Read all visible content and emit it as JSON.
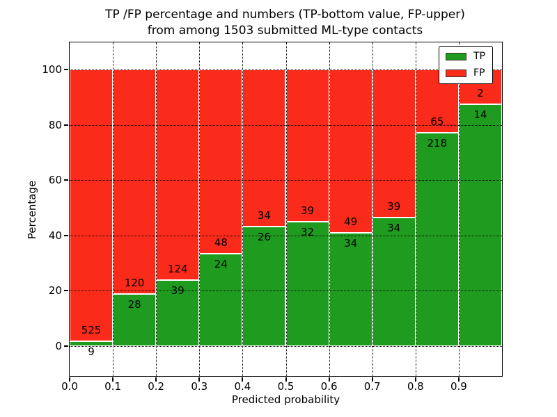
{
  "title": {
    "line1": "TP /FP percentage and numbers (TP-bottom value, FP-upper)",
    "line2": "from among 1503 submitted ML-type contacts"
  },
  "axes": {
    "xlabel": "Predicted probability",
    "ylabel": "Percentage",
    "yticks": [
      0,
      20,
      40,
      60,
      80,
      100
    ],
    "xtick_labels": [
      "0.0",
      "0.1",
      "0.2",
      "0.3",
      "0.4",
      "0.5",
      "0.6",
      "0.7",
      "0.8",
      "0.9"
    ]
  },
  "legend": {
    "items": [
      {
        "label": "TP",
        "color": "#1f9b1f"
      },
      {
        "label": "FP",
        "color": "#fa2b1a"
      }
    ]
  },
  "chart_data": {
    "type": "bar",
    "stacked": true,
    "normalized_to_percent": true,
    "title": "TP /FP percentage and numbers (TP-bottom value, FP-upper) from among 1503 submitted ML-type contacts",
    "xlabel": "Predicted probability",
    "ylabel": "Percentage",
    "total_contacts": 1503,
    "categories": [
      "0.0-0.1",
      "0.1-0.2",
      "0.2-0.3",
      "0.3-0.4",
      "0.4-0.5",
      "0.5-0.6",
      "0.6-0.7",
      "0.7-0.8",
      "0.8-0.9",
      "0.9-1.0"
    ],
    "bin_width": 0.1,
    "series": [
      {
        "name": "TP",
        "color": "#1f9b1f",
        "values": [
          9,
          28,
          39,
          24,
          26,
          32,
          34,
          34,
          218,
          14
        ]
      },
      {
        "name": "FP",
        "color": "#fa2b1a",
        "values": [
          525,
          120,
          124,
          48,
          34,
          39,
          49,
          39,
          65,
          2
        ]
      }
    ],
    "tp_percent_per_bin": [
      1.7,
      18.9,
      23.9,
      33.3,
      43.3,
      45.1,
      41.0,
      46.6,
      77.0,
      87.5
    ],
    "ylim": [
      -10.8,
      109.5
    ],
    "grid": "dotted",
    "legend_position": "upper right"
  }
}
